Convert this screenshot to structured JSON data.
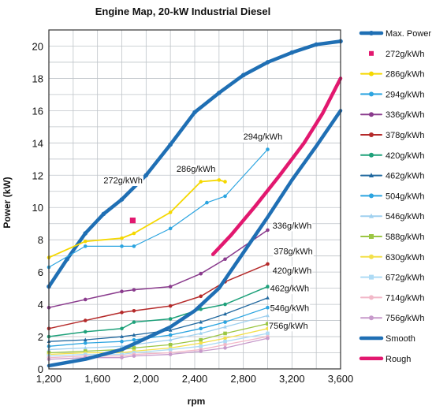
{
  "chart_data": {
    "type": "line",
    "title": "Engine Map, 20-kW Industrial Diesel",
    "xlabel": "rpm",
    "ylabel": "Power (kW)",
    "xlim": [
      1200,
      3600
    ],
    "ylim": [
      0,
      21
    ],
    "x_ticks": [
      1200,
      1600,
      2000,
      2400,
      2800,
      3200,
      3600
    ],
    "x_tick_labels": [
      "1,200",
      "1,600",
      "2,000",
      "2,400",
      "2,800",
      "3,200",
      "3,600"
    ],
    "y_ticks": [
      0,
      2,
      4,
      6,
      8,
      10,
      12,
      14,
      16,
      18,
      20
    ],
    "y_tick_labels": [
      "0",
      "2",
      "4",
      "6",
      "8",
      "10",
      "12",
      "14",
      "16",
      "18",
      "20"
    ],
    "grid": true,
    "legend_position": "right",
    "series": [
      {
        "name": "Max. Power",
        "color": "#1f6fb4",
        "width": 4.5,
        "marker": "circle",
        "points": [
          [
            1200,
            5.1
          ],
          [
            1350,
            6.8
          ],
          [
            1500,
            8.4
          ],
          [
            1650,
            9.6
          ],
          [
            1800,
            10.5
          ],
          [
            2000,
            12.0
          ],
          [
            2200,
            13.9
          ],
          [
            2400,
            15.9
          ],
          [
            2600,
            17.1
          ],
          [
            2800,
            18.2
          ],
          [
            3000,
            19.0
          ],
          [
            3200,
            19.6
          ],
          [
            3400,
            20.1
          ],
          [
            3600,
            20.3
          ]
        ]
      },
      {
        "name": "272g/kWh",
        "color": "#e2186f",
        "width": 0,
        "marker": "square",
        "points": [
          [
            1890,
            9.2
          ]
        ]
      },
      {
        "name": "286g/kWh",
        "color": "#f5d800",
        "width": 1.8,
        "marker": "circle",
        "points": [
          [
            1200,
            6.9
          ],
          [
            1500,
            7.9
          ],
          [
            1800,
            8.1
          ],
          [
            1900,
            8.4
          ],
          [
            2200,
            9.7
          ],
          [
            2450,
            11.6
          ],
          [
            2600,
            11.7
          ],
          [
            2650,
            11.6
          ]
        ]
      },
      {
        "name": "294g/kWh",
        "color": "#2ba4e0",
        "width": 1.2,
        "marker": "circle",
        "points": [
          [
            1200,
            6.3
          ],
          [
            1500,
            7.6
          ],
          [
            1800,
            7.6
          ],
          [
            1900,
            7.6
          ],
          [
            2200,
            8.7
          ],
          [
            2500,
            10.3
          ],
          [
            2650,
            10.7
          ],
          [
            3000,
            13.6
          ]
        ]
      },
      {
        "name": "336g/kWh",
        "color": "#8a3b8d",
        "width": 1.5,
        "marker": "circle",
        "points": [
          [
            1200,
            3.8
          ],
          [
            1500,
            4.3
          ],
          [
            1800,
            4.8
          ],
          [
            1900,
            4.9
          ],
          [
            2200,
            5.1
          ],
          [
            2450,
            5.9
          ],
          [
            2650,
            6.8
          ],
          [
            3000,
            8.6
          ]
        ]
      },
      {
        "name": "378g/kWh",
        "color": "#b52a2a",
        "width": 1.5,
        "marker": "circle",
        "points": [
          [
            1200,
            2.5
          ],
          [
            1500,
            3.0
          ],
          [
            1800,
            3.5
          ],
          [
            1900,
            3.6
          ],
          [
            2200,
            3.9
          ],
          [
            2450,
            4.5
          ],
          [
            2650,
            5.4
          ],
          [
            3000,
            6.5
          ]
        ]
      },
      {
        "name": "420g/kWh",
        "color": "#1ea17a",
        "width": 1.5,
        "marker": "circle",
        "points": [
          [
            1200,
            2.0
          ],
          [
            1500,
            2.3
          ],
          [
            1800,
            2.5
          ],
          [
            1900,
            2.9
          ],
          [
            2200,
            3.1
          ],
          [
            2450,
            3.7
          ],
          [
            2650,
            4.0
          ],
          [
            3000,
            5.1
          ]
        ]
      },
      {
        "name": "462g/kWh",
        "color": "#20689f",
        "width": 1.3,
        "marker": "triangle",
        "points": [
          [
            1200,
            1.7
          ],
          [
            1500,
            1.8
          ],
          [
            1800,
            2.0
          ],
          [
            1900,
            2.1
          ],
          [
            2200,
            2.4
          ],
          [
            2450,
            2.9
          ],
          [
            2650,
            3.4
          ],
          [
            3000,
            4.4
          ]
        ]
      },
      {
        "name": "504g/kWh",
        "color": "#2ba4e0",
        "width": 1.3,
        "marker": "circle",
        "points": [
          [
            1200,
            1.4
          ],
          [
            1500,
            1.6
          ],
          [
            1800,
            1.7
          ],
          [
            1900,
            1.8
          ],
          [
            2200,
            2.1
          ],
          [
            2450,
            2.5
          ],
          [
            2650,
            2.9
          ],
          [
            3000,
            3.8
          ]
        ]
      },
      {
        "name": "546g/kWh",
        "color": "#9fd0ef",
        "width": 1.3,
        "marker": "triangle",
        "points": [
          [
            1200,
            1.2
          ],
          [
            1500,
            1.3
          ],
          [
            1800,
            1.4
          ],
          [
            1900,
            1.5
          ],
          [
            2200,
            1.8
          ],
          [
            2450,
            2.2
          ],
          [
            2650,
            2.6
          ],
          [
            3000,
            3.3
          ]
        ]
      },
      {
        "name": "588g/kWh",
        "color": "#9bc643",
        "width": 1.3,
        "marker": "square",
        "points": [
          [
            1200,
            1.0
          ],
          [
            1500,
            1.1
          ],
          [
            1800,
            1.2
          ],
          [
            1900,
            1.3
          ],
          [
            2200,
            1.5
          ],
          [
            2450,
            1.8
          ],
          [
            2650,
            2.2
          ],
          [
            3000,
            2.8
          ]
        ]
      },
      {
        "name": "630g/kWh",
        "color": "#f3e04a",
        "width": 1.3,
        "marker": "circle",
        "points": [
          [
            1200,
            0.9
          ],
          [
            1500,
            1.0
          ],
          [
            1800,
            1.0
          ],
          [
            1900,
            1.1
          ],
          [
            2200,
            1.3
          ],
          [
            2450,
            1.6
          ],
          [
            2650,
            1.9
          ],
          [
            3000,
            2.5
          ]
        ]
      },
      {
        "name": "672g/kWh",
        "color": "#aedbf5",
        "width": 1.3,
        "marker": "square",
        "points": [
          [
            1200,
            0.8
          ],
          [
            1500,
            0.9
          ],
          [
            1800,
            0.9
          ],
          [
            1900,
            1.0
          ],
          [
            2200,
            1.2
          ],
          [
            2450,
            1.4
          ],
          [
            2650,
            1.7
          ],
          [
            3000,
            2.2
          ]
        ]
      },
      {
        "name": "714g/kWh",
        "color": "#f2b8c8",
        "width": 1.3,
        "marker": "circle",
        "points": [
          [
            1200,
            0.7
          ],
          [
            1500,
            0.8
          ],
          [
            1800,
            0.8
          ],
          [
            1900,
            0.9
          ],
          [
            2200,
            1.0
          ],
          [
            2450,
            1.2
          ],
          [
            2650,
            1.5
          ],
          [
            3000,
            2.0
          ]
        ]
      },
      {
        "name": "756g/kWh",
        "color": "#c79acb",
        "width": 1.3,
        "marker": "circle",
        "points": [
          [
            1200,
            0.6
          ],
          [
            1500,
            0.7
          ],
          [
            1800,
            0.7
          ],
          [
            1900,
            0.8
          ],
          [
            2200,
            0.9
          ],
          [
            2450,
            1.1
          ],
          [
            2650,
            1.3
          ],
          [
            3000,
            1.9
          ]
        ]
      },
      {
        "name": "Smooth",
        "color": "#1f6fb4",
        "width": 4.5,
        "marker": "none",
        "points": [
          [
            1200,
            0.2
          ],
          [
            1500,
            0.6
          ],
          [
            1800,
            1.2
          ],
          [
            2000,
            1.9
          ],
          [
            2200,
            2.6
          ],
          [
            2400,
            3.6
          ],
          [
            2600,
            5.0
          ],
          [
            2800,
            7.2
          ],
          [
            3000,
            9.4
          ],
          [
            3200,
            11.7
          ],
          [
            3400,
            13.8
          ],
          [
            3600,
            16.0
          ]
        ]
      },
      {
        "name": "Rough",
        "color": "#e2186f",
        "width": 4.5,
        "marker": "none",
        "points": [
          [
            2550,
            7.1
          ],
          [
            2700,
            8.3
          ],
          [
            2900,
            10.1
          ],
          [
            3100,
            12.0
          ],
          [
            3300,
            14.0
          ],
          [
            3450,
            15.8
          ],
          [
            3600,
            18.0
          ]
        ]
      }
    ],
    "annotations": [
      {
        "text": "272g/kWh",
        "x": 1650,
        "y": 11.5
      },
      {
        "text": "286g/kWh",
        "x": 2250,
        "y": 12.2
      },
      {
        "text": "294g/kWh",
        "x": 2800,
        "y": 14.2
      },
      {
        "text": "336g/kWh",
        "x": 3040,
        "y": 8.7
      },
      {
        "text": "378g/kWh",
        "x": 3050,
        "y": 7.1
      },
      {
        "text": "420g/kWh",
        "x": 3040,
        "y": 5.9
      },
      {
        "text": "462g/kWh",
        "x": 3020,
        "y": 4.8
      },
      {
        "text": "546g/kWh",
        "x": 3020,
        "y": 3.6
      },
      {
        "text": "756g/kWh",
        "x": 3010,
        "y": 2.5
      }
    ]
  }
}
